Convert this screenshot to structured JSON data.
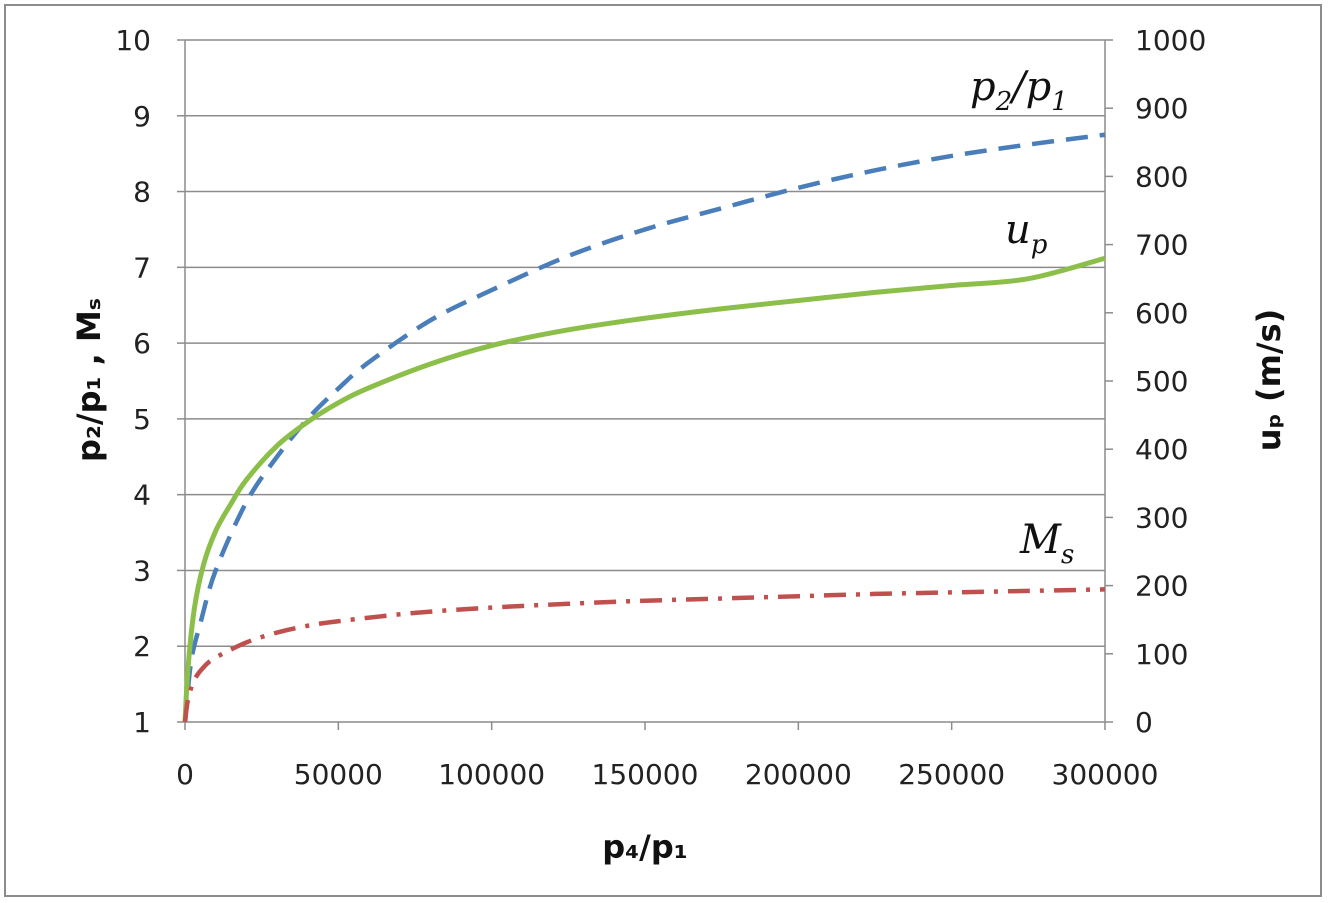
{
  "chart_data": {
    "type": "line",
    "title": "",
    "xlabel": "p₄/p₁",
    "ylabel_left": "p₂/p₁ , Mₛ",
    "ylabel_right": "uₚ (m/s)",
    "xlim": [
      0,
      300000
    ],
    "ylim_left": [
      1,
      10
    ],
    "ylim_right": [
      0,
      1000
    ],
    "x_ticks": [
      "0",
      "50000",
      "100000",
      "150000",
      "200000",
      "250000",
      "300000"
    ],
    "y_left_ticks": [
      "1",
      "2",
      "3",
      "4",
      "5",
      "6",
      "7",
      "8",
      "9",
      "10"
    ],
    "y_right_ticks": [
      "0",
      "100",
      "200",
      "300",
      "400",
      "500",
      "600",
      "700",
      "800",
      "900",
      "1000"
    ],
    "grid": true,
    "series": [
      {
        "name": "p₂/p₁",
        "axis": "left",
        "style": "dashed",
        "color": "#4a7ebb",
        "x": [
          0,
          2000,
          5000,
          10000,
          20000,
          30000,
          40000,
          50000,
          60000,
          80000,
          100000,
          125000,
          150000,
          175000,
          200000,
          225000,
          250000,
          275000,
          300000
        ],
        "y": [
          1.0,
          1.8,
          2.3,
          3.0,
          3.9,
          4.5,
          5.0,
          5.4,
          5.75,
          6.3,
          6.7,
          7.15,
          7.5,
          7.78,
          8.05,
          8.28,
          8.47,
          8.62,
          8.75
        ]
      },
      {
        "name": "uₚ",
        "axis": "right",
        "style": "solid",
        "color": "#8cbf4a",
        "x": [
          0,
          1000,
          3000,
          6000,
          10000,
          15000,
          20000,
          30000,
          40000,
          50000,
          60000,
          80000,
          100000,
          125000,
          150000,
          175000,
          200000,
          225000,
          250000,
          275000,
          300000
        ],
        "y": [
          0,
          80,
          165,
          230,
          280,
          320,
          355,
          405,
          440,
          468,
          490,
          525,
          552,
          575,
          592,
          606,
          618,
          630,
          640,
          650,
          680
        ]
      },
      {
        "name": "Mₛ",
        "axis": "left",
        "style": "dash-dot",
        "color": "#c0504d",
        "x": [
          0,
          1000,
          3000,
          6000,
          10000,
          20000,
          30000,
          40000,
          50000,
          75000,
          100000,
          125000,
          150000,
          175000,
          200000,
          225000,
          250000,
          275000,
          300000
        ],
        "y": [
          1.0,
          1.3,
          1.55,
          1.72,
          1.85,
          2.05,
          2.18,
          2.27,
          2.33,
          2.44,
          2.51,
          2.56,
          2.6,
          2.63,
          2.66,
          2.69,
          2.71,
          2.73,
          2.75
        ]
      }
    ],
    "annotations": [
      {
        "text_base": "p",
        "sub": "2",
        "text_mid": "/p",
        "sub2": "1",
        "target": "p₂/p₁"
      },
      {
        "text_base": "u",
        "sub": "p",
        "target": "uₚ"
      },
      {
        "text_base": "M",
        "sub": "s",
        "target": "Mₛ"
      }
    ]
  }
}
